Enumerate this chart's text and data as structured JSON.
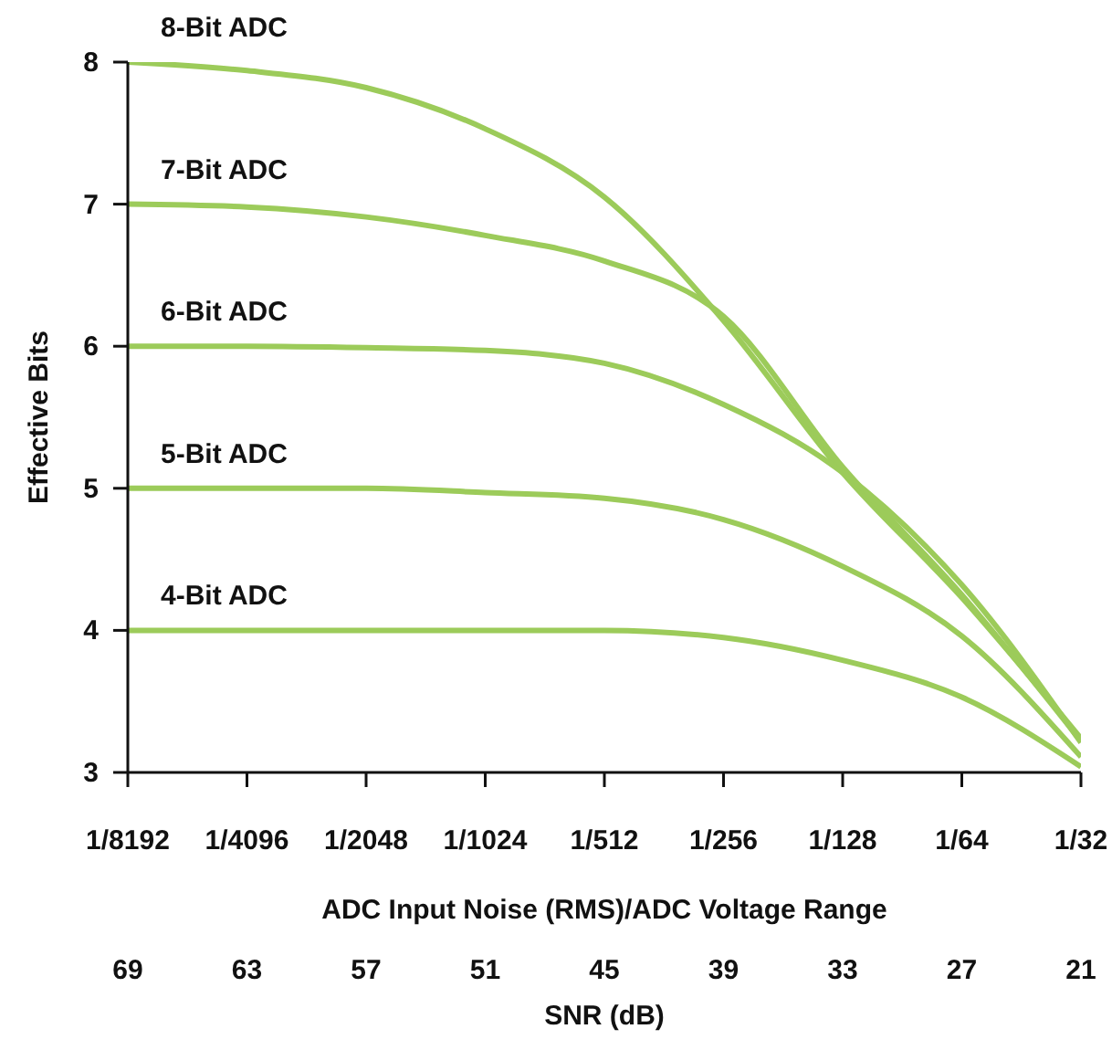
{
  "chart_data": {
    "type": "line",
    "ylabel": "Effective Bits",
    "xlabel": "ADC Input Noise (RMS)/ADC Voltage Range",
    "x2label": "SNR (dB)",
    "categories": [
      "1/8192",
      "1/4096",
      "1/2048",
      "1/1024",
      "1/512",
      "1/256",
      "1/128",
      "1/64",
      "1/32"
    ],
    "x2lim": [
      69,
      21
    ],
    "x2ticks": [
      69,
      63,
      57,
      51,
      45,
      39,
      33,
      27,
      21
    ],
    "ylim": [
      3,
      8
    ],
    "yticks": [
      3,
      4,
      5,
      6,
      7,
      8
    ],
    "grid": false,
    "legend": false,
    "marker": "none",
    "line_style": "solid",
    "series": [
      {
        "name": "8-Bit ADC",
        "color": "#9ccb5a",
        "values": [
          8.0,
          7.94,
          7.82,
          7.53,
          7.05,
          6.18,
          5.11,
          4.23,
          3.24
        ]
      },
      {
        "name": "7-Bit ADC",
        "color": "#9ccb5a",
        "values": [
          7.0,
          6.98,
          6.91,
          6.78,
          6.6,
          6.21,
          5.15,
          4.25,
          3.22
        ]
      },
      {
        "name": "6-Bit ADC",
        "color": "#9ccb5a",
        "values": [
          6.0,
          6.0,
          5.99,
          5.97,
          5.88,
          5.59,
          5.11,
          4.32,
          3.21
        ]
      },
      {
        "name": "5-Bit ADC",
        "color": "#9ccb5a",
        "values": [
          5.0,
          5.0,
          5.0,
          4.97,
          4.93,
          4.78,
          4.45,
          3.96,
          3.11
        ]
      },
      {
        "name": "4-Bit ADC",
        "color": "#9ccb5a",
        "values": [
          4.0,
          4.0,
          4.0,
          4.0,
          4.0,
          3.95,
          3.79,
          3.53,
          3.04
        ]
      }
    ]
  }
}
